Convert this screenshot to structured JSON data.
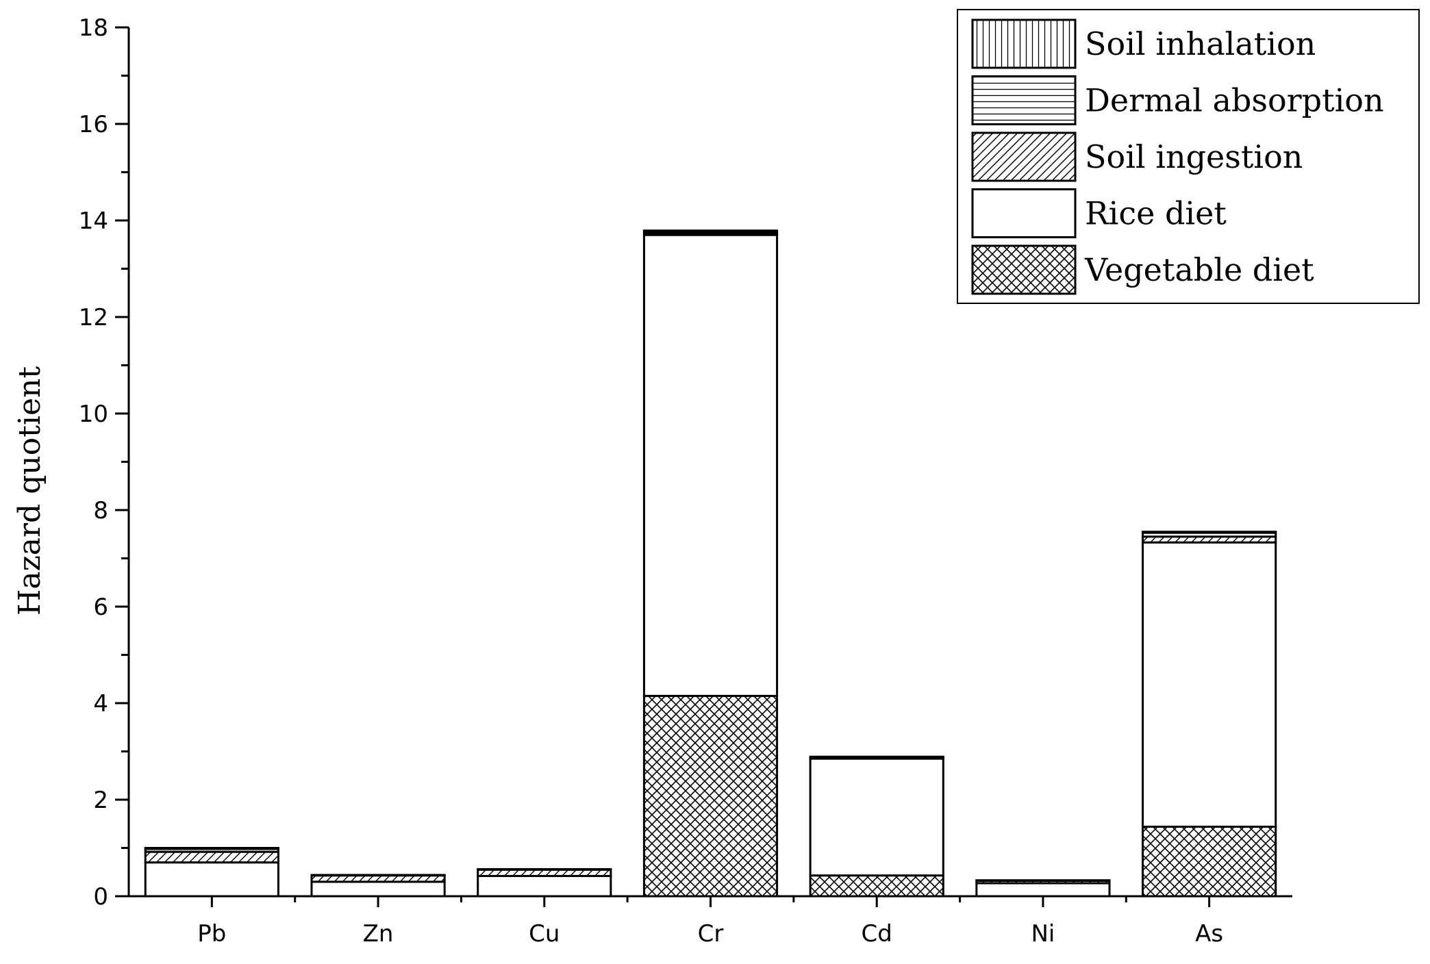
{
  "chart_data": {
    "type": "bar",
    "stacked": true,
    "categories": [
      "Pb",
      "Zn",
      "Cu",
      "Cr",
      "Cd",
      "Ni",
      "As"
    ],
    "ylabel": "Hazard quotient",
    "ylim": [
      0,
      18
    ],
    "yticks": [
      0,
      2,
      4,
      6,
      8,
      10,
      12,
      14,
      16,
      18
    ],
    "grid": false,
    "legend_position": "top-right",
    "series": [
      {
        "name": "Vegetable diet",
        "pattern": "crosshatch",
        "values": [
          0.0,
          0.0,
          0.0,
          4.15,
          0.43,
          0.0,
          1.44
        ]
      },
      {
        "name": "Rice diet",
        "pattern": "none",
        "values": [
          0.7,
          0.3,
          0.42,
          9.55,
          2.42,
          0.27,
          5.89
        ]
      },
      {
        "name": "Soil ingestion",
        "pattern": "diagonal",
        "values": [
          0.22,
          0.13,
          0.13,
          0.04,
          0.02,
          0.05,
          0.12
        ]
      },
      {
        "name": "Dermal absorption",
        "pattern": "horizontal",
        "values": [
          0.06,
          0.01,
          0.01,
          0.04,
          0.01,
          0.01,
          0.08
        ]
      },
      {
        "name": "Soil inhalation",
        "pattern": "vertical",
        "values": [
          0.02,
          0.0,
          0.0,
          0.01,
          0.01,
          0.0,
          0.02
        ]
      }
    ],
    "legend_order": [
      "Soil inhalation",
      "Dermal absorption",
      "Soil ingestion",
      "Rice diet",
      "Vegetable diet"
    ]
  }
}
